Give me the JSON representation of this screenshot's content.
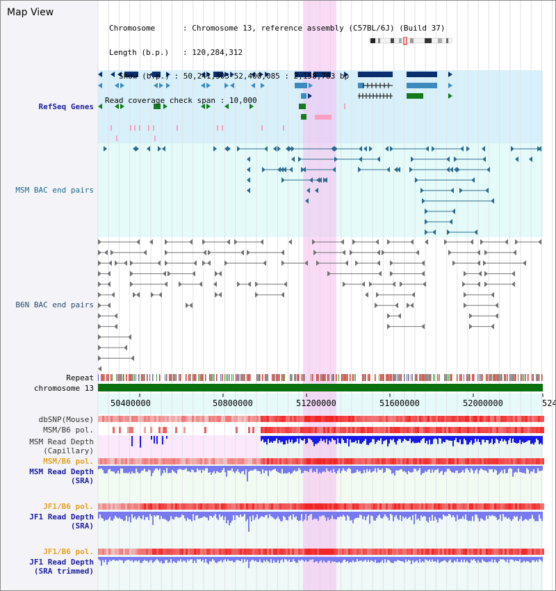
{
  "title": "Map View",
  "info": {
    "chromosome_label": "Chromosome",
    "chromosome_value": "Chromosome 13, reference assembly (C57BL/6J) (Build 37)",
    "length_label": "Length (b.p.)",
    "length_value": "120,284,312",
    "show_label": "Show (b.p.)",
    "show_value": "50,241,303-52,400,085 : 2,158,783 bp",
    "coverage_label": "Read coverage check span",
    "coverage_value": "10,000"
  },
  "tracks": {
    "refseq": "RefSeq Genes",
    "msm_bac": "MSM BAC end pairs",
    "b6n_bac": "B6N BAC end pairs",
    "repeat": "Repeat",
    "chromosome": "chromosome 13",
    "dbsnp": "dbSNP(Mouse)",
    "msm_b6_pol_1": "MSM/B6 pol.",
    "msm_read_depth_cap_1": "MSM Read Depth",
    "msm_read_depth_cap_2": "(Capillary)",
    "msm_b6_pol_2": "MSM/B6 pol.",
    "msm_read_depth_sra_1": "MSM Read Depth",
    "msm_read_depth_sra_2": "(SRA)",
    "jf1_b6_pol_1": "JF1/B6 pol.",
    "jf1_read_depth_1": "JF1 Read Depth",
    "jf1_read_depth_2": "(SRA)",
    "jf1_b6_pol_2": "JF1/B6 pol.",
    "jf1_trim_1": "JF1 Read Depth",
    "jf1_trim_2": "(SRA trimmed)"
  },
  "axis_ticks": [
    "50400000",
    "50800000",
    "51200000",
    "51600000",
    "52000000",
    "524"
  ],
  "colors": {
    "refseq_bg": "#d8f0fa",
    "msm_bg": "#e4fbfa",
    "highlight": "#f8d8f4",
    "navy": "#0a2e6e",
    "steel": "#3d8bbd",
    "green": "#157a1c",
    "pink": "#f7a0c4",
    "teal": "#2a6a8c",
    "gray": "#707070",
    "label_blue": "#2020a0",
    "label_teal": "#1a6a8a",
    "label_orange": "#e8a020",
    "depth_blue": "#1818e8",
    "depth_lavender": "#7878f0"
  }
}
